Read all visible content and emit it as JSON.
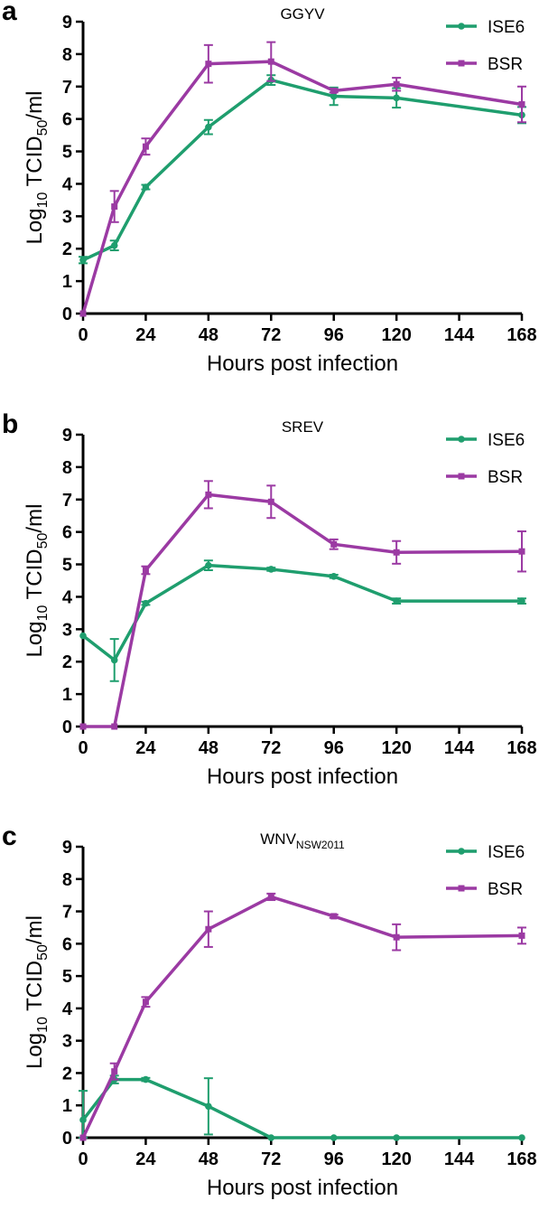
{
  "chart_data": [
    {
      "type": "line",
      "panel_label": "a",
      "title": "GGYV",
      "title_sub": "",
      "xlabel": "Hours post infection",
      "ylabel": "Log",
      "ylabel_sub": "10",
      "ylabel_rest": " TCID",
      "ylabel_sub2": "50",
      "ylabel_end": "/ml",
      "x_ticks": [
        0,
        24,
        48,
        72,
        96,
        120,
        144,
        168
      ],
      "y_ticks": [
        0,
        1,
        2,
        3,
        4,
        5,
        6,
        7,
        8,
        9
      ],
      "xlim": [
        0,
        168
      ],
      "ylim": [
        0,
        9
      ],
      "legend_position": "top-right",
      "series": [
        {
          "name": "ISE6",
          "color": "#1f9e6e",
          "marker": "circle",
          "x": [
            0,
            12,
            24,
            48,
            72,
            96,
            120,
            168
          ],
          "y": [
            1.65,
            2.1,
            3.9,
            5.75,
            7.2,
            6.7,
            6.65,
            6.12
          ],
          "err": [
            0.1,
            0.15,
            0.07,
            0.22,
            0.15,
            0.27,
            0.3,
            0.25
          ]
        },
        {
          "name": "BSR",
          "color": "#9b3aa3",
          "marker": "square",
          "x": [
            0,
            12,
            24,
            48,
            72,
            96,
            120,
            168
          ],
          "y": [
            0,
            3.3,
            5.15,
            7.7,
            7.77,
            6.87,
            7.07,
            6.45
          ],
          "err": [
            0.0,
            0.48,
            0.25,
            0.58,
            0.6,
            0.05,
            0.2,
            0.55
          ]
        }
      ]
    },
    {
      "type": "line",
      "panel_label": "b",
      "title": "SREV",
      "title_sub": "",
      "xlabel": "Hours post infection",
      "ylabel": "Log",
      "ylabel_sub": "10",
      "ylabel_rest": " TCID",
      "ylabel_sub2": "50",
      "ylabel_end": "/ml",
      "x_ticks": [
        0,
        24,
        48,
        72,
        96,
        120,
        144,
        168
      ],
      "y_ticks": [
        0,
        1,
        2,
        3,
        4,
        5,
        6,
        7,
        8,
        9
      ],
      "xlim": [
        0,
        168
      ],
      "ylim": [
        0,
        9
      ],
      "legend_position": "top-right",
      "series": [
        {
          "name": "ISE6",
          "color": "#1f9e6e",
          "marker": "circle",
          "x": [
            0,
            12,
            24,
            48,
            72,
            96,
            120,
            168
          ],
          "y": [
            2.8,
            2.05,
            3.8,
            4.97,
            4.85,
            4.63,
            3.87,
            3.87
          ],
          "err": [
            0.0,
            0.65,
            0.05,
            0.15,
            0.05,
            0.05,
            0.08,
            0.08
          ]
        },
        {
          "name": "BSR",
          "color": "#9b3aa3",
          "marker": "square",
          "x": [
            0,
            12,
            24,
            48,
            72,
            96,
            120,
            168
          ],
          "y": [
            0,
            0,
            4.82,
            7.15,
            6.93,
            5.62,
            5.37,
            5.4
          ],
          "err": [
            0.0,
            0.0,
            0.12,
            0.42,
            0.5,
            0.15,
            0.35,
            0.62
          ]
        }
      ]
    },
    {
      "type": "line",
      "panel_label": "c",
      "title": "WNV",
      "title_sub": "NSW2011",
      "xlabel": "Hours post infection",
      "ylabel": "Log",
      "ylabel_sub": "10",
      "ylabel_rest": " TCID",
      "ylabel_sub2": "50",
      "ylabel_end": "/ml",
      "x_ticks": [
        0,
        24,
        48,
        72,
        96,
        120,
        144,
        168
      ],
      "y_ticks": [
        0,
        1,
        2,
        3,
        4,
        5,
        6,
        7,
        8,
        9
      ],
      "xlim": [
        0,
        168
      ],
      "ylim": [
        0,
        9
      ],
      "legend_position": "top-right",
      "series": [
        {
          "name": "ISE6",
          "color": "#1f9e6e",
          "marker": "circle",
          "x": [
            0,
            12,
            24,
            48,
            72,
            96,
            120,
            168
          ],
          "y": [
            0.55,
            1.8,
            1.8,
            0.97,
            0,
            0,
            0,
            0
          ],
          "err": [
            0.9,
            0.12,
            0.05,
            0.87,
            0.0,
            0.0,
            0.0,
            0.0
          ]
        },
        {
          "name": "BSR",
          "color": "#9b3aa3",
          "marker": "square",
          "x": [
            0,
            12,
            24,
            48,
            72,
            96,
            120,
            168
          ],
          "y": [
            0,
            2.05,
            4.2,
            6.45,
            7.45,
            6.85,
            6.2,
            6.25
          ],
          "err": [
            0.0,
            0.25,
            0.15,
            0.55,
            0.1,
            0.05,
            0.4,
            0.25
          ]
        }
      ]
    }
  ]
}
